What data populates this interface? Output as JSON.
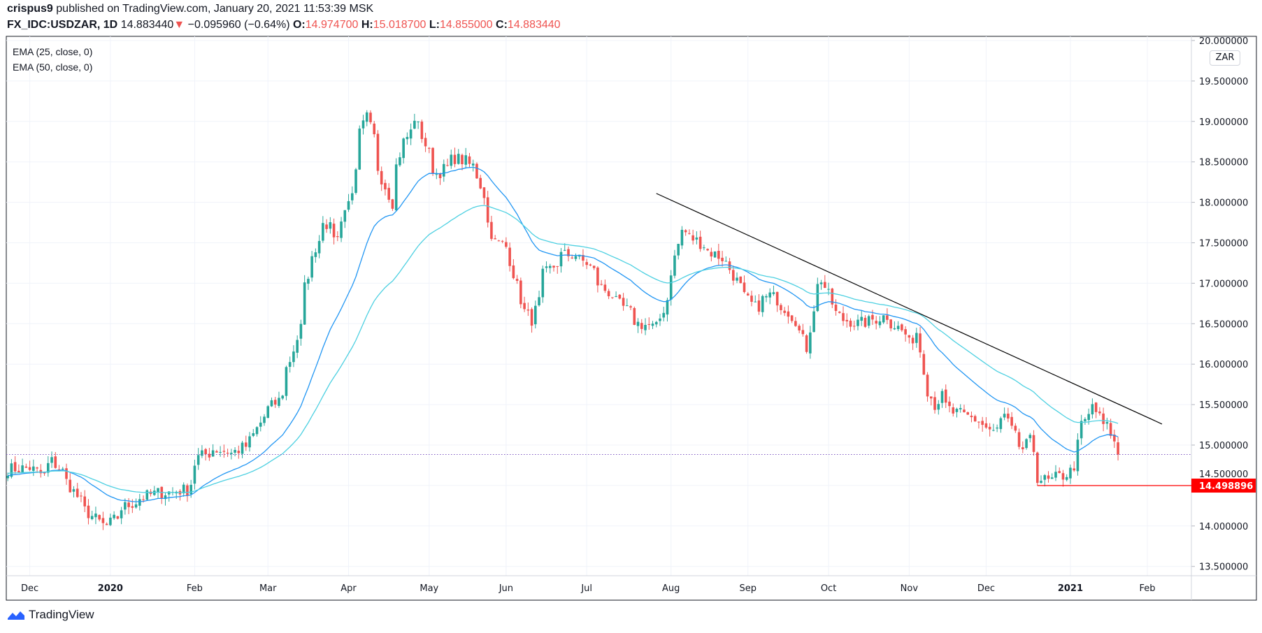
{
  "header": {
    "author": "crispus9",
    "published_text": "published on TradingView.com, January 20, 2021 11:53:39 MSK",
    "symbol": "FX_IDC:USDZAR, 1D",
    "last": "14.883440",
    "change": "−0.095960 (−0.64%)",
    "o_label": "O:",
    "o": "14.974700",
    "h_label": "H:",
    "h": "15.018700",
    "l_label": "L:",
    "l": "14.855000",
    "c_label": "C:",
    "c": "14.883440"
  },
  "indicators": [
    "EMA (25, close, 0)",
    "EMA (50, close, 0)"
  ],
  "currency_badge": "ZAR",
  "brand": "TradingView",
  "colors": {
    "up": "#26a69a",
    "down": "#ef5350",
    "ema25": "#2196f3",
    "ema50": "#4dd0e1",
    "trendline": "#000000",
    "support": "#ff0000",
    "grid": "#f0f3fa"
  },
  "chart_data": {
    "type": "candlestick",
    "interval": "1D",
    "ylim": [
      13.5,
      20.0
    ],
    "y_ticks": [
      "13.500000",
      "14.000000",
      "14.500000",
      "15.000000",
      "15.500000",
      "16.000000",
      "16.500000",
      "17.000000",
      "17.500000",
      "18.000000",
      "18.500000",
      "19.000000",
      "19.500000",
      "20.000000"
    ],
    "x_ticks": [
      {
        "label": "Dec",
        "date": "2019-12-02"
      },
      {
        "label": "2020",
        "date": "2020-01-01"
      },
      {
        "label": "Feb",
        "date": "2020-02-03"
      },
      {
        "label": "Mar",
        "date": "2020-03-02"
      },
      {
        "label": "Apr",
        "date": "2020-04-01"
      },
      {
        "label": "May",
        "date": "2020-05-01"
      },
      {
        "label": "Jun",
        "date": "2020-06-01"
      },
      {
        "label": "Jul",
        "date": "2020-07-01"
      },
      {
        "label": "Aug",
        "date": "2020-08-03"
      },
      {
        "label": "Sep",
        "date": "2020-09-01"
      },
      {
        "label": "Oct",
        "date": "2020-10-01"
      },
      {
        "label": "Nov",
        "date": "2020-11-02"
      },
      {
        "label": "Dec",
        "date": "2020-12-01"
      },
      {
        "label": "2021",
        "date": "2021-01-01"
      },
      {
        "label": "Feb",
        "date": "2021-02-01"
      }
    ],
    "approx_closes": [
      [
        "2019-11-22",
        14.7
      ],
      [
        "2019-12-02",
        14.72
      ],
      [
        "2019-12-06",
        14.62
      ],
      [
        "2019-12-10",
        14.8
      ],
      [
        "2019-12-16",
        14.55
      ],
      [
        "2019-12-20",
        14.3
      ],
      [
        "2019-12-27",
        14.05
      ],
      [
        "2019-12-31",
        14.0
      ],
      [
        "2020-01-06",
        14.22
      ],
      [
        "2020-01-10",
        14.3
      ],
      [
        "2020-01-17",
        14.4
      ],
      [
        "2020-01-24",
        14.42
      ],
      [
        "2020-01-30",
        14.45
      ],
      [
        "2020-02-04",
        14.85
      ],
      [
        "2020-02-10",
        14.95
      ],
      [
        "2020-02-17",
        14.9
      ],
      [
        "2020-02-24",
        15.05
      ],
      [
        "2020-02-28",
        15.35
      ],
      [
        "2020-03-05",
        15.55
      ],
      [
        "2020-03-10",
        16.05
      ],
      [
        "2020-03-13",
        16.45
      ],
      [
        "2020-03-19",
        17.45
      ],
      [
        "2020-03-23",
        17.8
      ],
      [
        "2020-03-27",
        17.55
      ],
      [
        "2020-04-01",
        18.0
      ],
      [
        "2020-04-06",
        18.85
      ],
      [
        "2020-04-08",
        19.05
      ],
      [
        "2020-04-14",
        18.3
      ],
      [
        "2020-04-17",
        18.0
      ],
      [
        "2020-04-22",
        18.75
      ],
      [
        "2020-04-27",
        19.05
      ],
      [
        "2020-05-01",
        18.6
      ],
      [
        "2020-05-05",
        18.35
      ],
      [
        "2020-05-12",
        18.55
      ],
      [
        "2020-05-19",
        18.45
      ],
      [
        "2020-05-22",
        18.1
      ],
      [
        "2020-05-27",
        17.5
      ],
      [
        "2020-06-01",
        17.45
      ],
      [
        "2020-06-05",
        16.8
      ],
      [
        "2020-06-10",
        16.55
      ],
      [
        "2020-06-15",
        17.1
      ],
      [
        "2020-06-22",
        17.35
      ],
      [
        "2020-06-26",
        17.35
      ],
      [
        "2020-07-01",
        17.25
      ],
      [
        "2020-07-07",
        16.95
      ],
      [
        "2020-07-15",
        16.7
      ],
      [
        "2020-07-21",
        16.5
      ],
      [
        "2020-07-28",
        16.45
      ],
      [
        "2020-08-03",
        17.15
      ],
      [
        "2020-08-06",
        17.65
      ],
      [
        "2020-08-11",
        17.55
      ],
      [
        "2020-08-17",
        17.4
      ],
      [
        "2020-08-24",
        17.25
      ],
      [
        "2020-08-28",
        16.95
      ],
      [
        "2020-09-03",
        16.7
      ],
      [
        "2020-09-09",
        16.85
      ],
      [
        "2020-09-15",
        16.7
      ],
      [
        "2020-09-21",
        16.4
      ],
      [
        "2020-09-23",
        16.2
      ],
      [
        "2020-09-25",
        16.7
      ],
      [
        "2020-09-29",
        17.05
      ],
      [
        "2020-10-02",
        16.75
      ],
      [
        "2020-10-07",
        16.55
      ],
      [
        "2020-10-13",
        16.5
      ],
      [
        "2020-10-19",
        16.55
      ],
      [
        "2020-10-23",
        16.6
      ],
      [
        "2020-10-28",
        16.45
      ],
      [
        "2020-11-02",
        16.25
      ],
      [
        "2020-11-04",
        16.4
      ],
      [
        "2020-11-06",
        15.95
      ],
      [
        "2020-11-11",
        15.5
      ],
      [
        "2020-11-13",
        15.6
      ],
      [
        "2020-11-18",
        15.4
      ],
      [
        "2020-11-24",
        15.35
      ],
      [
        "2020-11-30",
        15.25
      ],
      [
        "2020-12-03",
        15.15
      ],
      [
        "2020-12-08",
        15.35
      ],
      [
        "2020-12-11",
        15.1
      ],
      [
        "2020-12-15",
        14.95
      ],
      [
        "2020-12-17",
        15.05
      ],
      [
        "2020-12-21",
        14.6
      ],
      [
        "2020-12-24",
        14.55
      ],
      [
        "2020-12-30",
        14.62
      ],
      [
        "2021-01-04",
        14.75
      ],
      [
        "2021-01-06",
        15.25
      ],
      [
        "2021-01-11",
        15.5
      ],
      [
        "2021-01-14",
        15.25
      ],
      [
        "2021-01-18",
        15.15
      ],
      [
        "2021-01-20",
        14.88
      ]
    ],
    "ema_periods": [
      25,
      50
    ],
    "last_price": 14.88344,
    "trendline": {
      "from": [
        "2020-07-28",
        18.11
      ],
      "to": [
        "2021-02-05",
        15.26
      ]
    },
    "support_line": {
      "from": "2020-12-21",
      "price": 14.498896,
      "label": "14.498896"
    }
  }
}
